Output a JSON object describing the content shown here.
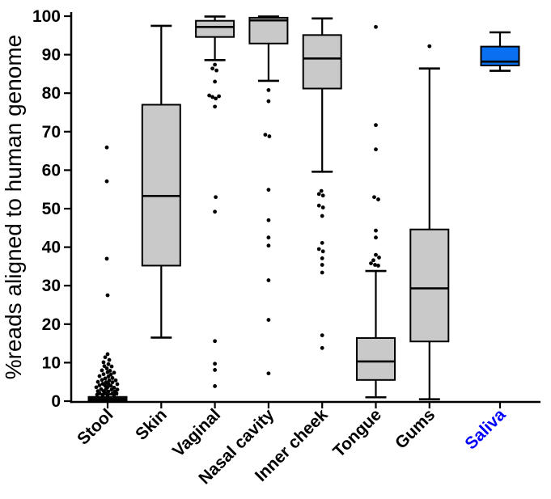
{
  "figure": {
    "background": "#ffffff",
    "accent_blue_box": "#0a6ff0",
    "accent_blue_label": "#0000ff",
    "box_gray": "#c9c9c9",
    "stool_black": "#111111"
  },
  "chart_data": {
    "type": "box",
    "title": "",
    "xlabel": "",
    "ylabel": "%reads aligned to human genome",
    "ylim": [
      0,
      100
    ],
    "yticks": [
      0,
      10,
      20,
      30,
      40,
      50,
      60,
      70,
      80,
      90,
      100
    ],
    "grid": false,
    "legend": "none",
    "categories": [
      "Stool",
      "Skin",
      "Vaginal",
      "Nasal cavity",
      "Inner cheek",
      "Tongue",
      "Gums",
      "Saliva"
    ],
    "saliva_separated_group": true,
    "boxes": [
      {
        "name": "Stool",
        "fill": "#111111",
        "label_color": "#000000",
        "whisker_low": null,
        "q1": 0,
        "median": 0.5,
        "q3": 1.1,
        "whisker_high": 1.8,
        "points": [
          {
            "v": 12.2,
            "dx": 0
          },
          {
            "v": 11.4,
            "dx": -3
          },
          {
            "v": 10.7,
            "dx": 2
          },
          {
            "v": 10.1,
            "dx": -5
          },
          {
            "v": 9.6,
            "dx": 1
          },
          {
            "v": 9.1,
            "dx": -4
          },
          {
            "v": 9.0,
            "dx": 5
          },
          {
            "v": 8.5,
            "dx": -1
          },
          {
            "v": 8.0,
            "dx": -7
          },
          {
            "v": 7.9,
            "dx": 3
          },
          {
            "v": 7.5,
            "dx": 0
          },
          {
            "v": 7.4,
            "dx": 8
          },
          {
            "v": 7.0,
            "dx": -5
          },
          {
            "v": 6.9,
            "dx": 4
          },
          {
            "v": 6.5,
            "dx": -10
          },
          {
            "v": 6.4,
            "dx": 1
          },
          {
            "v": 6.0,
            "dx": 6
          },
          {
            "v": 5.9,
            "dx": -3
          },
          {
            "v": 5.5,
            "dx": -7
          },
          {
            "v": 5.4,
            "dx": 2
          },
          {
            "v": 5.4,
            "dx": 10
          },
          {
            "v": 5.0,
            "dx": -12
          },
          {
            "v": 4.9,
            "dx": -2
          },
          {
            "v": 4.9,
            "dx": 6
          },
          {
            "v": 4.5,
            "dx": -6
          },
          {
            "v": 4.5,
            "dx": 1
          },
          {
            "v": 4.4,
            "dx": 12
          },
          {
            "v": 4.1,
            "dx": -10
          },
          {
            "v": 4.0,
            "dx": -3
          },
          {
            "v": 4.0,
            "dx": 4
          },
          {
            "v": 3.6,
            "dx": -14
          },
          {
            "v": 3.6,
            "dx": 0
          },
          {
            "v": 3.5,
            "dx": 8
          },
          {
            "v": 3.1,
            "dx": -8
          },
          {
            "v": 3.1,
            "dx": -2
          },
          {
            "v": 3.0,
            "dx": 5
          },
          {
            "v": 3.0,
            "dx": 12
          },
          {
            "v": 2.6,
            "dx": -12
          },
          {
            "v": 2.6,
            "dx": -5
          },
          {
            "v": 2.5,
            "dx": 1
          },
          {
            "v": 2.5,
            "dx": 9
          },
          {
            "v": 2.1,
            "dx": -10
          },
          {
            "v": 2.1,
            "dx": -3
          },
          {
            "v": 2.0,
            "dx": 6
          },
          {
            "v": 2.0,
            "dx": 11
          },
          {
            "v": 1.7,
            "dx": -13
          },
          {
            "v": 1.6,
            "dx": -6
          },
          {
            "v": 1.6,
            "dx": 0
          },
          {
            "v": 1.6,
            "dx": 8
          },
          {
            "v": 27.5,
            "dx": 0
          },
          {
            "v": 37.0,
            "dx": -1
          },
          {
            "v": 57.1,
            "dx": -1
          },
          {
            "v": 65.9,
            "dx": -1
          }
        ]
      },
      {
        "name": "Skin",
        "fill": "#c9c9c9",
        "label_color": "#000000",
        "whisker_low": 16.5,
        "q1": 35.2,
        "median": 53.3,
        "q3": 77.0,
        "whisker_high": 97.5,
        "points": []
      },
      {
        "name": "Vaginal",
        "fill": "#c9c9c9",
        "label_color": "#000000",
        "whisker_low": 88.6,
        "q1": 94.6,
        "median": 97.2,
        "q3": 98.8,
        "whisker_high": 99.9,
        "points": [
          {
            "v": 87.4,
            "dx": 0
          },
          {
            "v": 86.4,
            "dx": -3
          },
          {
            "v": 85.9,
            "dx": 2
          },
          {
            "v": 83.0,
            "dx": 0
          },
          {
            "v": 79.4,
            "dx": -7
          },
          {
            "v": 79.2,
            "dx": 5
          },
          {
            "v": 79.0,
            "dx": -3
          },
          {
            "v": 78.6,
            "dx": 1
          },
          {
            "v": 76.5,
            "dx": 0
          },
          {
            "v": 53.0,
            "dx": 1
          },
          {
            "v": 49.2,
            "dx": 0
          },
          {
            "v": 15.6,
            "dx": 0
          },
          {
            "v": 9.7,
            "dx": 0
          },
          {
            "v": 8.1,
            "dx": 0
          },
          {
            "v": 3.9,
            "dx": 0
          }
        ]
      },
      {
        "name": "Nasal cavity",
        "fill": "#c9c9c9",
        "label_color": "#000000",
        "whisker_low": 83.2,
        "q1": 92.9,
        "median": 98.9,
        "q3": 99.6,
        "whisker_high": 99.9,
        "points": [
          {
            "v": 80.8,
            "dx": 0
          },
          {
            "v": 77.9,
            "dx": 0
          },
          {
            "v": 69.2,
            "dx": -4
          },
          {
            "v": 68.8,
            "dx": 1
          },
          {
            "v": 54.9,
            "dx": 0
          },
          {
            "v": 47.0,
            "dx": 0
          },
          {
            "v": 42.5,
            "dx": 0
          },
          {
            "v": 40.4,
            "dx": 0
          },
          {
            "v": 31.4,
            "dx": 0
          },
          {
            "v": 21.1,
            "dx": 0
          },
          {
            "v": 7.2,
            "dx": 0
          }
        ]
      },
      {
        "name": "Inner cheek",
        "fill": "#c9c9c9",
        "label_color": "#000000",
        "whisker_low": 59.6,
        "q1": 81.2,
        "median": 89.0,
        "q3": 95.1,
        "whisker_high": 99.4,
        "points": [
          {
            "v": 54.6,
            "dx": -1
          },
          {
            "v": 53.8,
            "dx": -4
          },
          {
            "v": 53.4,
            "dx": 1
          },
          {
            "v": 50.8,
            "dx": -4
          },
          {
            "v": 50.3,
            "dx": 1
          },
          {
            "v": 48.1,
            "dx": 0
          },
          {
            "v": 41.1,
            "dx": 0
          },
          {
            "v": 39.5,
            "dx": -4
          },
          {
            "v": 38.9,
            "dx": 1
          },
          {
            "v": 37.1,
            "dx": 0
          },
          {
            "v": 35.4,
            "dx": 0
          },
          {
            "v": 33.4,
            "dx": 0
          },
          {
            "v": 17.1,
            "dx": 0
          },
          {
            "v": 13.8,
            "dx": 0
          }
        ]
      },
      {
        "name": "Tongue",
        "fill": "#c9c9c9",
        "label_color": "#000000",
        "whisker_low": 1.0,
        "q1": 5.5,
        "median": 10.3,
        "q3": 16.4,
        "whisker_high": 33.8,
        "points": [
          {
            "v": 97.2,
            "dx": 0
          },
          {
            "v": 71.7,
            "dx": 0
          },
          {
            "v": 65.4,
            "dx": 0
          },
          {
            "v": 53.0,
            "dx": -2
          },
          {
            "v": 52.4,
            "dx": 3
          },
          {
            "v": 44.3,
            "dx": 0
          },
          {
            "v": 42.5,
            "dx": 0
          },
          {
            "v": 38.0,
            "dx": 0
          },
          {
            "v": 37.3,
            "dx": 4
          },
          {
            "v": 36.6,
            "dx": -3
          },
          {
            "v": 35.8,
            "dx": -6
          },
          {
            "v": 35.4,
            "dx": -1
          },
          {
            "v": 35.2,
            "dx": 3
          }
        ]
      },
      {
        "name": "Gums",
        "fill": "#c9c9c9",
        "label_color": "#000000",
        "whisker_low": 0.5,
        "q1": 15.5,
        "median": 29.3,
        "q3": 44.6,
        "whisker_high": 86.4,
        "points": [
          {
            "v": 92.2,
            "dx": 0
          }
        ]
      },
      {
        "name": "Saliva",
        "fill": "#0a6ff0",
        "label_color": "#0000ff",
        "whisker_low": 85.8,
        "q1": 87.2,
        "median": 88.2,
        "q3": 92.1,
        "whisker_high": 95.8,
        "points": []
      }
    ]
  }
}
